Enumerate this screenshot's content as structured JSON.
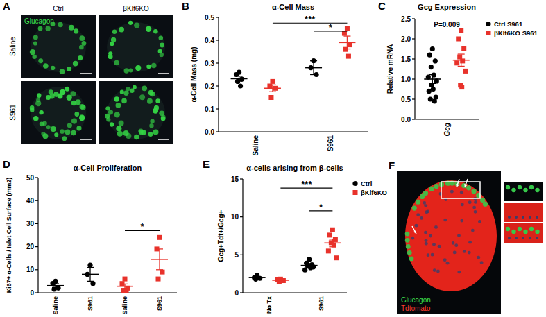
{
  "chart_data": [
    {
      "label": "B",
      "type": "dotplot",
      "title": "α-Cell Mass",
      "y_label": "α-Cell Mass (mg)",
      "categories": [
        "Saline",
        "S961"
      ],
      "ylim": [
        0,
        0.5
      ],
      "yticks": [
        {
          "value": 0,
          "label": "0.0"
        },
        0.1,
        0.2,
        0.3,
        0.4,
        0.5
      ],
      "series": [
        {
          "color": "#000000",
          "marker": "circle",
          "values": [
            0.232,
            0.28
          ],
          "errors": [
            0.011,
            0.03
          ],
          "points": [
            [
              0.26,
              0.25,
              0.23,
              0.22,
              0.2
            ],
            [
              0.31,
              0.28,
              0.25
            ]
          ]
        },
        {
          "color": "#e8322b",
          "marker": "square",
          "values": [
            0.19,
            0.39
          ],
          "errors": [
            0.015,
            0.028
          ],
          "points": [
            [
              0.22,
              0.2,
              0.19,
              0.15
            ],
            [
              0.45,
              0.43,
              0.38,
              0.36,
              0.33
            ]
          ]
        }
      ],
      "annotations": [
        {
          "text": "*",
          "from": [
            1,
            0
          ],
          "to": [
            1,
            1
          ],
          "y": 0.44
        },
        {
          "text": "***",
          "from": [
            0,
            1
          ],
          "to": [
            1,
            1
          ],
          "y": 0.475
        }
      ]
    },
    {
      "label": "C",
      "type": "dotplot",
      "title": "Gcg Expression",
      "y_label": "Relative mRNA",
      "categories": [
        "Gcg"
      ],
      "ylim": [
        0,
        2.5
      ],
      "yticks": [
        {
          "value": 0,
          "label": "0.0"
        },
        0.5,
        {
          "value": 1,
          "label": "1.0"
        },
        1.5,
        {
          "value": 2,
          "label": "2.0"
        },
        2.5
      ],
      "legend": "right",
      "series": [
        {
          "name": "Ctrl S961",
          "color": "#000000",
          "marker": "circle",
          "values": [
            1.0
          ],
          "errors": [
            0.11
          ],
          "points": [
            [
              1.75,
              1.6,
              1.45,
              1.3,
              1.1,
              1.05,
              0.95,
              0.85,
              0.75,
              0.7,
              0.55,
              0.5,
              0.45
            ]
          ]
        },
        {
          "name": "βKlf6KO S961",
          "color": "#e8322b",
          "marker": "square",
          "values": [
            1.47
          ],
          "errors": [
            0.15
          ],
          "points": [
            [
              2.2,
              2.0,
              1.75,
              1.55,
              1.45,
              1.4,
              1.2,
              0.85,
              0.8
            ]
          ]
        }
      ],
      "annotations": [
        {
          "text": "P=0.009",
          "x": 0,
          "y": 2.3
        }
      ]
    },
    {
      "label": "D",
      "type": "dotplot",
      "title": "α-Cell Proliferation",
      "y_label": "Ki67+ α-Cells / Islet Cell Surface (mm2)",
      "categories": [
        "Saline",
        "S961",
        "Saline",
        "S961"
      ],
      "ylim": [
        0,
        50
      ],
      "yticks": [
        0,
        10,
        20,
        30,
        40,
        50
      ],
      "series": [
        {
          "color": "#000000",
          "marker": "circle",
          "values": [
            3.1,
            8,
            null,
            null
          ],
          "errors": [
            0.8,
            3,
            null,
            null
          ],
          "points": [
            [
              5,
              4,
              2,
              1.5
            ],
            [
              12,
              8,
              4
            ],
            null,
            null
          ]
        },
        {
          "color": "#e8322b",
          "marker": "square",
          "values": [
            null,
            null,
            2.8,
            14.5
          ],
          "errors": [
            null,
            null,
            1,
            4.5
          ],
          "points": [
            null,
            null,
            [
              6,
              4,
              2,
              1,
              1
            ],
            [
              24,
              19,
              9,
              6
            ]
          ]
        }
      ],
      "annotations": [
        {
          "text": "*",
          "from": [
            2,
            1
          ],
          "to": [
            3,
            1
          ],
          "y": 27
        }
      ]
    },
    {
      "label": "E",
      "type": "dotplot",
      "title": "α-cells  arising from  β-cells",
      "y_label": "Gcg+Tdt+/Gcg+",
      "categories": [
        "No Tx",
        "S961"
      ],
      "ylim": [
        0,
        15
      ],
      "yticks": [
        0,
        5,
        10,
        15
      ],
      "legend": "right",
      "series": [
        {
          "name": "Ctrl",
          "color": "#000000",
          "marker": "circle",
          "values": [
            2.0,
            3.6
          ],
          "errors": [
            0.15,
            0.25
          ],
          "points": [
            [
              2.3,
              2.0,
              1.9,
              1.8
            ],
            [
              4.4,
              3.9,
              3.7,
              3.5,
              3.3,
              3.0,
              3.4
            ]
          ]
        },
        {
          "name": "βKlf6KO",
          "color": "#e8322b",
          "marker": "square",
          "values": [
            1.65,
            6.56
          ],
          "errors": [
            0.08,
            0.5
          ],
          "points": [
            [
              1.8,
              1.7,
              1.6,
              1.5
            ],
            [
              8.3,
              7.6,
              7.0,
              6.6,
              6.3,
              5.5,
              4.6
            ]
          ]
        }
      ],
      "annotations": [
        {
          "text": "*",
          "from": [
            1,
            0
          ],
          "to": [
            1,
            1
          ],
          "y": 10.8
        },
        {
          "text": "***",
          "from": [
            0,
            1
          ],
          "to": [
            1,
            1
          ],
          "y": 13.8
        }
      ]
    }
  ],
  "images": [
    {
      "label": "A",
      "columns": [
        "Ctrl",
        "βKlf6KO"
      ],
      "rows": [
        "Saline",
        "S961"
      ],
      "stain": "Glucagon"
    },
    {
      "label": "F",
      "stains": [
        "Glucagon",
        "Tdtomato"
      ]
    }
  ]
}
